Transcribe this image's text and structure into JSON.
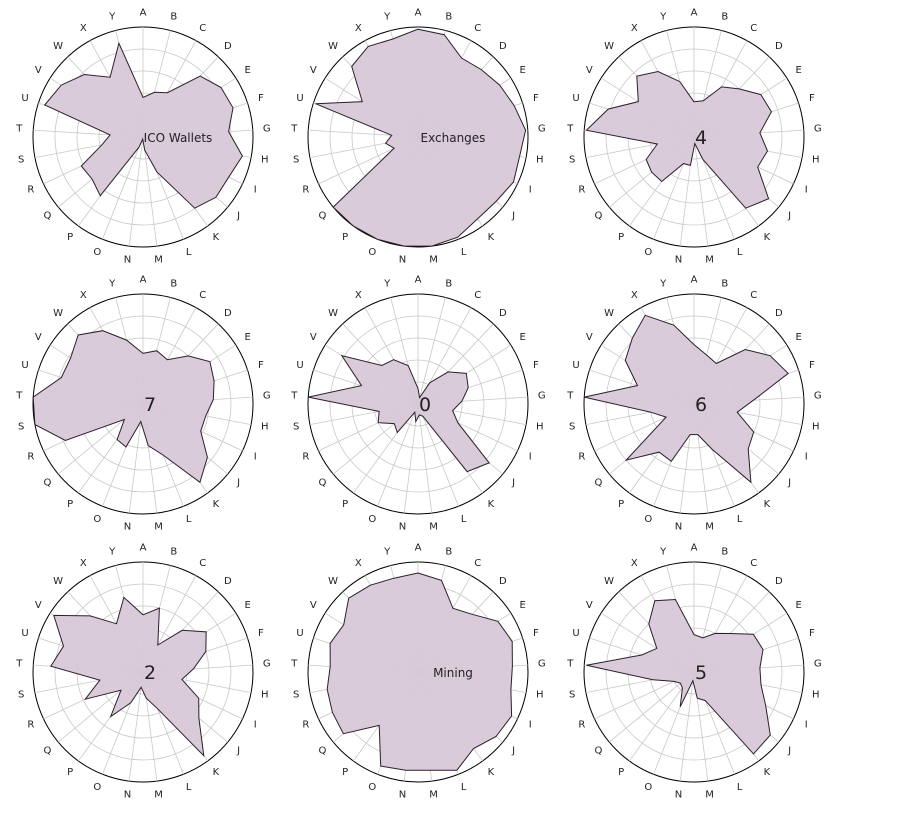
{
  "chart_data": {
    "type": "radar",
    "categories": [
      "A",
      "B",
      "C",
      "D",
      "E",
      "F",
      "G",
      "H",
      "I",
      "J",
      "K",
      "L",
      "M",
      "N",
      "O",
      "P",
      "Q",
      "R",
      "S",
      "T",
      "U",
      "V",
      "W",
      "X",
      "Y"
    ],
    "rmax": 5,
    "rings": 5,
    "grid": true,
    "colors": {
      "fill": "#d8c8d8",
      "stroke": "#2a1f2a",
      "grid": "#c8c8c8",
      "outer": "#000000"
    },
    "panels": [
      {
        "center_label": "ICO Wallets",
        "values": [
          1.8,
          2.1,
          2.3,
          3.8,
          4.2,
          4.3,
          3.9,
          4.6,
          4.3,
          4.3,
          4.0,
          1.7,
          0.6,
          0.1,
          0.5,
          3.3,
          3.0,
          3.1,
          1.9,
          1.5,
          4.7,
          4.4,
          3.9,
          3.1,
          4.4
        ]
      },
      {
        "center_label": "Exchanges",
        "values": [
          4.9,
          4.8,
          4.1,
          4.2,
          4.4,
          4.6,
          4.9,
          4.7,
          4.8,
          4.6,
          4.6,
          4.9,
          5.0,
          5.0,
          5.0,
          5.0,
          5.0,
          1.2,
          1.5,
          1.2,
          4.9,
          3.0,
          4.4,
          4.7,
          4.6
        ]
      },
      {
        "center_label": "4",
        "values": [
          1.6,
          1.7,
          2.6,
          3.0,
          3.6,
          3.7,
          3.0,
          3.4,
          3.2,
          4.4,
          4.0,
          1.1,
          0.3,
          1.3,
          1.3,
          2.5,
          2.5,
          2.4,
          1.7,
          4.9,
          4.1,
          3.0,
          3.8,
          3.4,
          2.6
        ]
      },
      {
        "center_label": "7",
        "values": [
          2.3,
          2.5,
          2.3,
          3.0,
          3.6,
          3.4,
          3.2,
          2.9,
          2.9,
          3.8,
          4.4,
          2.5,
          1.9,
          0.8,
          2.1,
          2.0,
          1.1,
          3.9,
          5.0,
          5.0,
          3.9,
          3.9,
          4.3,
          3.8,
          3.0
        ]
      },
      {
        "center_label": "0",
        "values": [
          0.7,
          0.3,
          1.1,
          2.0,
          2.6,
          2.4,
          2.0,
          1.6,
          2.0,
          4.2,
          3.8,
          0.6,
          0.5,
          0.8,
          0.4,
          1.6,
          1.4,
          2.0,
          1.8,
          5.0,
          2.7,
          4.1,
          2.4,
          2.3,
          1.8
        ]
      },
      {
        "center_label": "6",
        "values": [
          2.7,
          2.3,
          2.1,
          3.4,
          4.1,
          4.5,
          2.7,
          2.0,
          3.0,
          3.2,
          4.4,
          2.2,
          1.4,
          1.4,
          2.8,
          2.7,
          4.0,
          1.4,
          2.0,
          5.0,
          2.7,
          3.7,
          4.1,
          4.6,
          3.7
        ]
      },
      {
        "center_label": "2",
        "values": [
          2.6,
          3.0,
          1.4,
          2.6,
          3.4,
          3.0,
          2.3,
          1.8,
          2.8,
          3.3,
          4.7,
          1.8,
          1.2,
          0.7,
          1.5,
          2.5,
          1.3,
          2.9,
          2.0,
          4.2,
          3.8,
          4.8,
          3.5,
          2.5,
          3.5
        ]
      },
      {
        "center_label": "Mining",
        "values": [
          4.5,
          4.3,
          3.3,
          3.6,
          4.3,
          4.5,
          4.3,
          4.3,
          4.7,
          4.6,
          4.3,
          4.8,
          4.5,
          4.5,
          4.6,
          3.0,
          4.4,
          4.3,
          4.2,
          4.0,
          4.2,
          4.0,
          4.6,
          4.5,
          4.4
        ]
      },
      {
        "center_label": "5",
        "values": [
          1.7,
          1.6,
          2.0,
          2.4,
          3.2,
          3.3,
          3.0,
          3.1,
          3.6,
          4.5,
          4.6,
          1.4,
          1.2,
          0.4,
          1.7,
          0.9,
          0.8,
          1.0,
          1.9,
          4.9,
          2.5,
          2.0,
          3.0,
          3.7,
          3.4
        ]
      }
    ]
  }
}
